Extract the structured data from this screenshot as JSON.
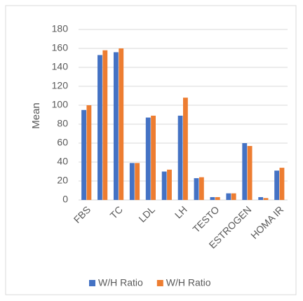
{
  "chart_data": {
    "type": "bar",
    "y_label": "Mean",
    "categories": [
      "FBS",
      null,
      "TC",
      null,
      "LDL",
      null,
      "LH",
      null,
      "TESTO",
      null,
      "ESTROGEN",
      null,
      "HOMA IR"
    ],
    "series": [
      {
        "name": "W/H Ratio",
        "color": "#4472c4",
        "values": [
          95,
          153,
          156,
          39,
          87,
          30,
          89,
          23,
          3,
          7,
          60,
          3,
          31
        ]
      },
      {
        "name": "W/H Ratio",
        "color": "#ed7d31",
        "values": [
          100,
          158,
          160,
          39,
          89,
          32,
          108,
          24,
          3,
          7,
          57,
          2,
          34
        ]
      }
    ],
    "ylim": [
      0,
      180
    ],
    "yticks": [
      0,
      20,
      40,
      60,
      80,
      100,
      120,
      140,
      160,
      180
    ],
    "grid": true,
    "legend": "bottom"
  }
}
